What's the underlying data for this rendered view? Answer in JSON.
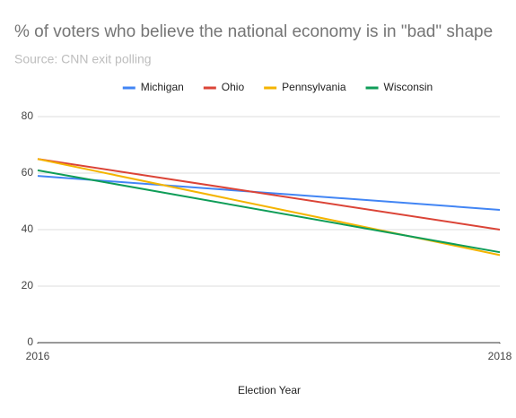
{
  "chart_data": {
    "type": "line",
    "title": "% of voters who believe the national economy is in \"bad\" shape",
    "subtitle": "Source: CNN exit polling",
    "x_label": "Election Year",
    "x": [
      2016,
      2018
    ],
    "xlim": [
      2016,
      2018
    ],
    "xticks": [
      2016,
      2018
    ],
    "ylim": [
      0,
      80
    ],
    "yticks": [
      0,
      20,
      40,
      60,
      80
    ],
    "grid": true,
    "legend": "top",
    "series": [
      {
        "name": "Michigan",
        "color": "#4285f4",
        "values": [
          59,
          47
        ]
      },
      {
        "name": "Ohio",
        "color": "#db4437",
        "values": [
          65,
          40
        ]
      },
      {
        "name": "Pennsylvania",
        "color": "#f4b400",
        "values": [
          65,
          31
        ]
      },
      {
        "name": "Wisconsin",
        "color": "#0f9d58",
        "values": [
          61,
          32
        ]
      }
    ]
  }
}
